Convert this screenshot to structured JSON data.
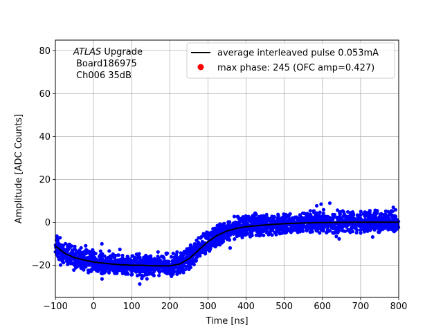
{
  "chart_data": {
    "type": "scatter",
    "xlabel": "Time [ns]",
    "ylabel": "Amplitude [ADC Counts]",
    "xlim": [
      -100,
      800
    ],
    "ylim": [
      -35,
      85
    ],
    "xticks": [
      -100,
      0,
      100,
      200,
      300,
      400,
      500,
      600,
      700,
      800
    ],
    "yticks": [
      -20,
      0,
      20,
      40,
      60,
      80
    ],
    "grid": true,
    "legend_position": "top-right",
    "annotation": {
      "line1_italic": "ATLAS",
      "line1_rest": " Upgrade",
      "line2": "Board186975",
      "line3": "Ch006 35dB"
    },
    "series": [
      {
        "name": "average interleaved pulse 0.053mA",
        "kind": "line",
        "color": "#000000",
        "x": [
          -100,
          -75,
          -50,
          -25,
          0,
          25,
          50,
          75,
          100,
          125,
          150,
          175,
          200,
          225,
          250,
          275,
          300,
          325,
          350,
          375,
          400,
          450,
          500,
          550,
          600,
          650,
          700,
          750,
          800
        ],
        "y": [
          -11,
          -14.5,
          -16.5,
          -17.5,
          -18.5,
          -19,
          -19.5,
          -19.8,
          -20,
          -20,
          -20.2,
          -20.3,
          -20.3,
          -19.5,
          -17,
          -13,
          -9,
          -6,
          -4,
          -2.8,
          -2,
          -1.2,
          -0.6,
          -0.3,
          -0.1,
          0,
          0.1,
          0.1,
          0.1
        ]
      },
      {
        "name": "max phase: 245 (OFC amp=0.427)",
        "kind": "marker",
        "color": "#ff0000",
        "x": [],
        "y": []
      }
    ],
    "scatter": {
      "color": "#0000ff",
      "spread_low": 5,
      "spread_high": 6
    }
  }
}
